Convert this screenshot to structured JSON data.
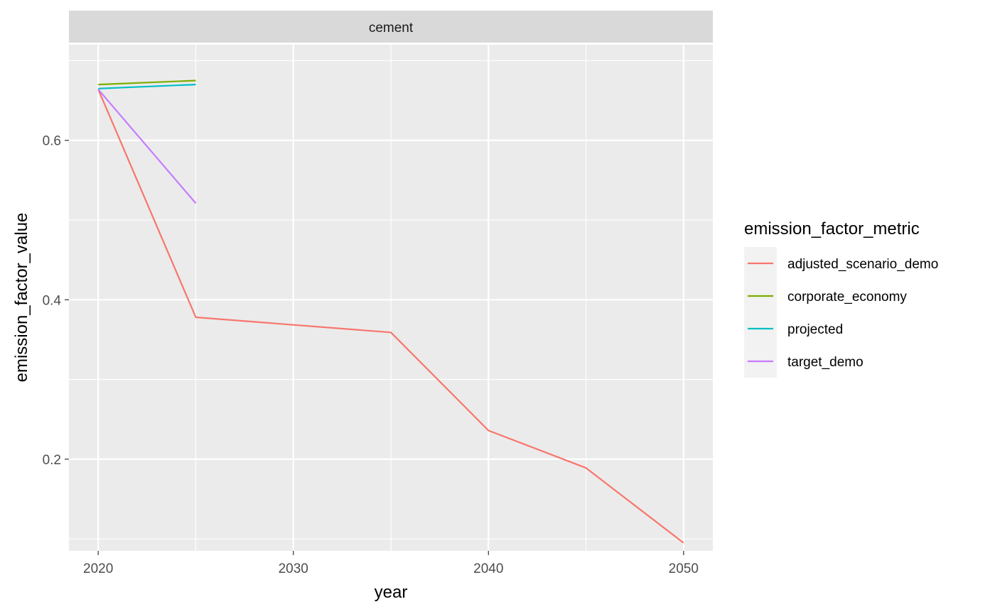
{
  "chart_data": {
    "type": "line",
    "facet": "cement",
    "xlabel": "year",
    "ylabel": "emission_factor_value",
    "xlim": [
      2018.5,
      2051.5
    ],
    "ylim": [
      0.085,
      0.72
    ],
    "x_ticks": [
      2020,
      2030,
      2040,
      2050
    ],
    "y_ticks": [
      0.2,
      0.4,
      0.6
    ],
    "y_tick_labels": [
      "0.2",
      "0.4",
      "0.6"
    ],
    "grid": true,
    "legend": {
      "title": "emission_factor_metric",
      "position": "right"
    },
    "series": [
      {
        "name": "adjusted_scenario_demo",
        "color": "#F8766D",
        "x": [
          2020,
          2025,
          2035,
          2040,
          2045,
          2050
        ],
        "y": [
          0.664,
          0.378,
          0.359,
          0.236,
          0.189,
          0.095
        ]
      },
      {
        "name": "corporate_economy",
        "color": "#7CAE00",
        "x": [
          2020,
          2025
        ],
        "y": [
          0.67,
          0.675
        ]
      },
      {
        "name": "projected",
        "color": "#00BFC4",
        "x": [
          2020,
          2025
        ],
        "y": [
          0.665,
          0.67
        ]
      },
      {
        "name": "target_demo",
        "color": "#C77CFF",
        "x": [
          2020,
          2025
        ],
        "y": [
          0.664,
          0.521
        ]
      }
    ]
  }
}
